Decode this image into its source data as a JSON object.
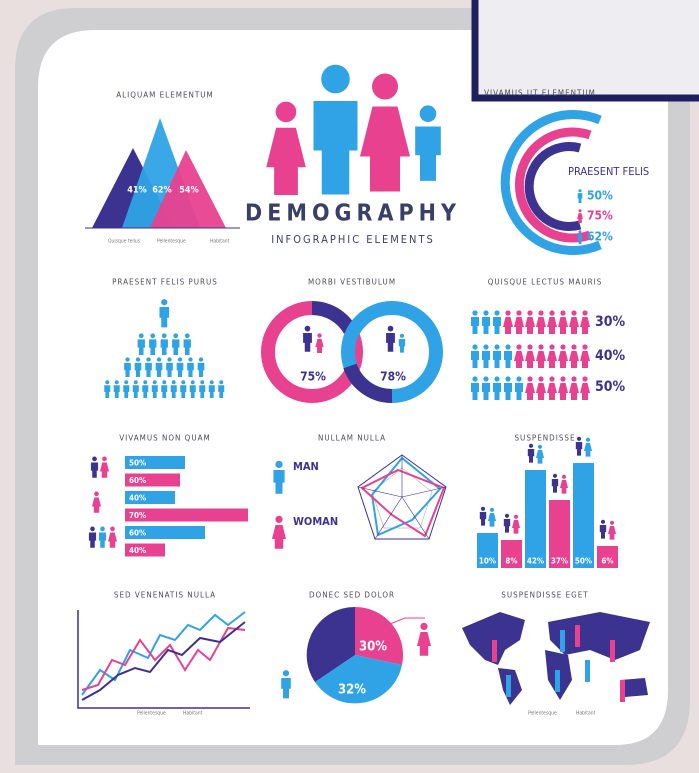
{
  "header": {
    "title": "DEMOGRAPHY",
    "subtitle": "INFOGRAPHIC ELEMENTS"
  },
  "panels": [
    {
      "title": "ALIQUAM ELEMENTUM",
      "labels": [
        "41%",
        "62%",
        "54%"
      ],
      "legend": [
        "Quisque tellus",
        "Pellentesque",
        "Habitant"
      ]
    },
    {
      "title": "VIVAMUS UT ELEMENTUM",
      "heading": "PRAESENT FELIS",
      "labels": [
        "50%",
        "75%",
        "62%"
      ]
    },
    {
      "title": "PRAESENT FELIS PURUS"
    },
    {
      "title": "MORBI VESTIBULUM",
      "labels": [
        "75%",
        "78%"
      ]
    },
    {
      "title": "QUISQUE LECTUS MAURIS",
      "labels": [
        "30%",
        "40%",
        "50%"
      ]
    },
    {
      "title": "VIVAMUS NON QUAM",
      "labels": [
        "50%",
        "60%",
        "40%",
        "70%",
        "60%",
        "40%"
      ]
    },
    {
      "title": "NULLAM NULLA",
      "items": [
        "MAN",
        "WOMAN"
      ]
    },
    {
      "title": "SUSPENDISSE",
      "labels": [
        "10%",
        "8%",
        "42%",
        "37%",
        "50%",
        "6%"
      ]
    },
    {
      "title": "SED VENENATIS NULLA",
      "legend": [
        "Pellentesque",
        "Habitant"
      ]
    },
    {
      "title": "DONEC SED DOLOR",
      "labels": [
        "30%",
        "32%"
      ]
    },
    {
      "title": "SUSPENDISSE EGET",
      "legend": [
        "Pellentesque",
        "Habitant"
      ]
    }
  ]
}
